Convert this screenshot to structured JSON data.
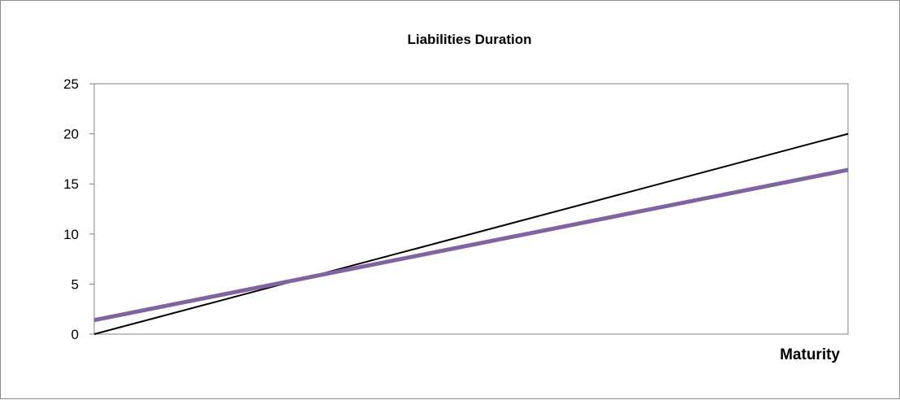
{
  "chart_data": {
    "type": "line",
    "title": "Liabilities Duration",
    "xlabel": "Maturity",
    "ylabel": "",
    "ylim": [
      0,
      25
    ],
    "yticks": [
      0,
      5,
      10,
      15,
      20,
      25
    ],
    "xlim": [
      0,
      20
    ],
    "grid": false,
    "legend": "none",
    "series": [
      {
        "x": [
          0,
          20
        ],
        "values": [
          0,
          20
        ],
        "color": "#000000"
      },
      {
        "x": [
          0,
          20
        ],
        "values": [
          1.4,
          16.4
        ],
        "color": "#8064a2"
      }
    ]
  }
}
